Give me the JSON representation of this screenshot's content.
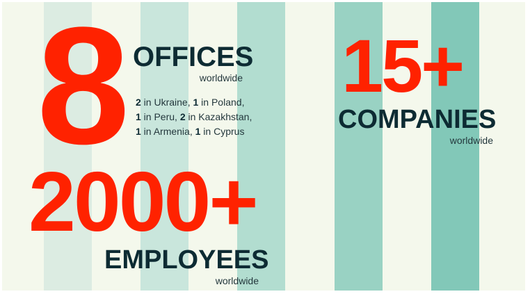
{
  "colors": {
    "background": "#f4f8ec",
    "accent": "#ff2200",
    "text": "#0d2b33",
    "stripes": [
      "#dcece2",
      "#c9e6dc",
      "#b2ddd0",
      "#99d2c3",
      "#82c8b8"
    ]
  },
  "offices": {
    "number": "8",
    "label": "OFFICES",
    "sub": "worldwide",
    "details": [
      [
        {
          "n": "2",
          "t": " in Ukraine, "
        },
        {
          "n": "1",
          "t": " in Poland,"
        }
      ],
      [
        {
          "n": "1",
          "t": " in Peru, "
        },
        {
          "n": "2",
          "t": " in Kazakhstan,"
        }
      ],
      [
        {
          "n": "1",
          "t": " in Armenia, "
        },
        {
          "n": "1",
          "t": " in Cyprus"
        }
      ]
    ]
  },
  "companies": {
    "number": "15+",
    "label": "COMPANIES",
    "sub": "worldwide"
  },
  "employees": {
    "number": "2000+",
    "label": "EMPLOYEES",
    "sub": "worldwide"
  }
}
